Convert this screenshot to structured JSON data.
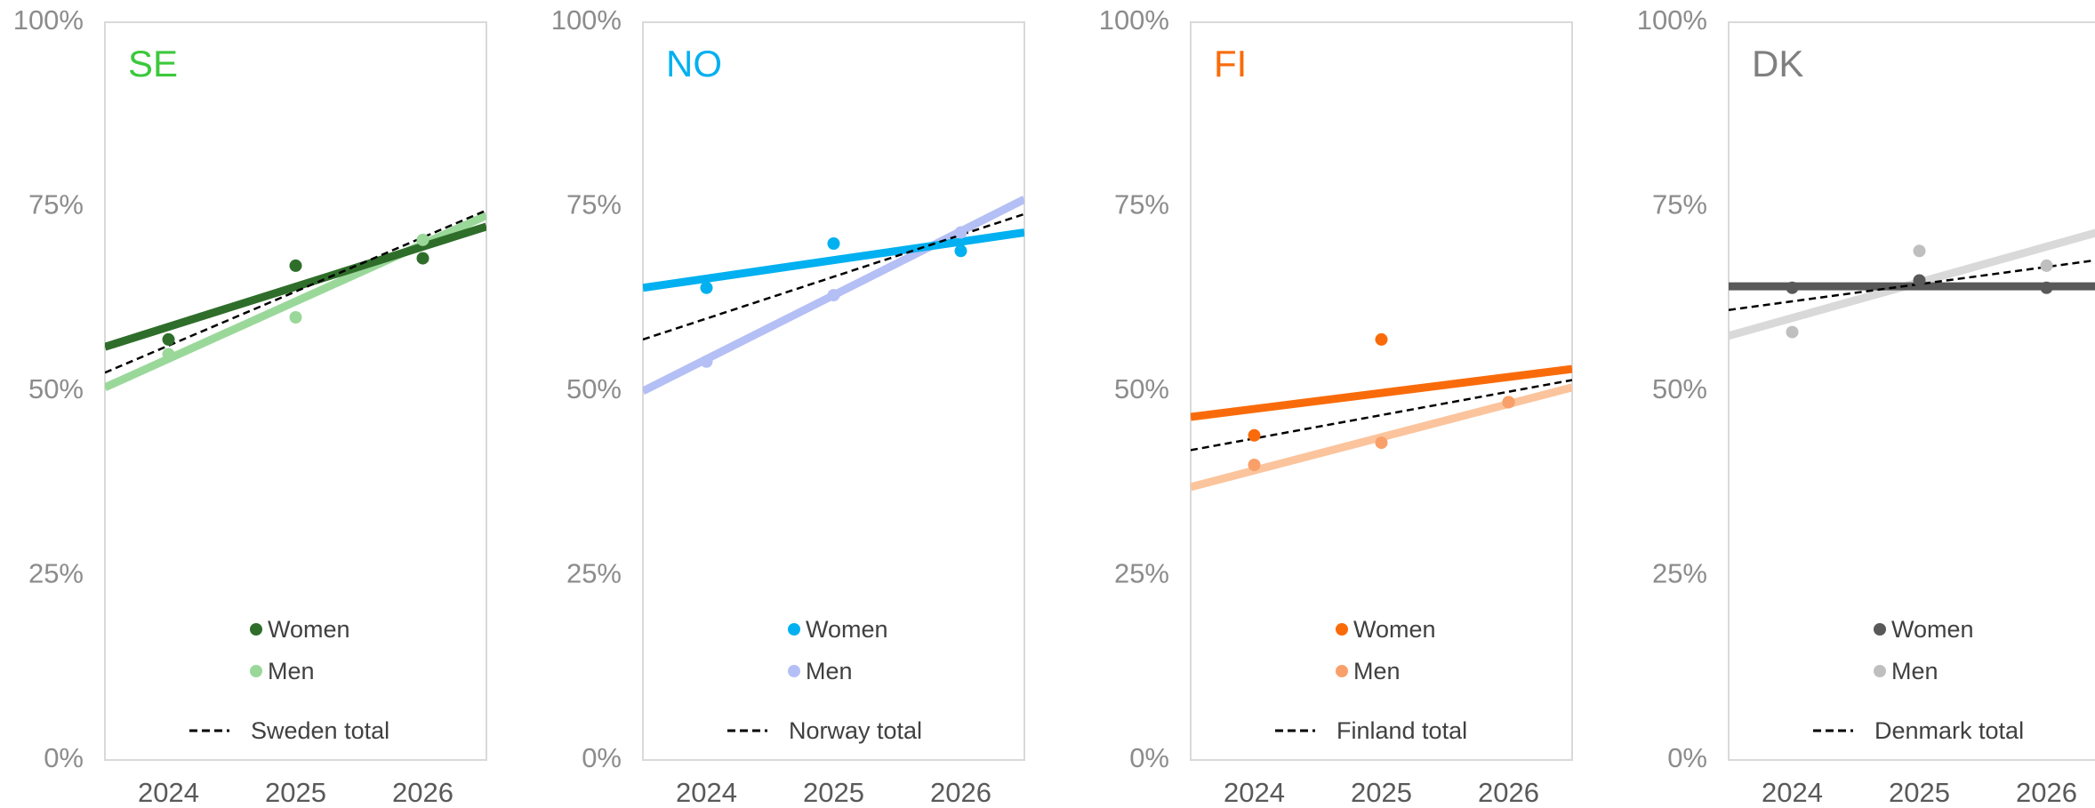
{
  "chart_data": [
    {
      "type": "scatter",
      "title": "SE",
      "title_color": "#3cc83c",
      "x": [
        2024,
        2025,
        2026
      ],
      "xlim": [
        2023.5,
        2026.5
      ],
      "xticks": [
        2024,
        2025,
        2026
      ],
      "ylim": [
        0,
        100
      ],
      "yticks": [
        {
          "value": 0,
          "label": "0%"
        },
        {
          "value": 25,
          "label": "25%"
        },
        {
          "value": 50,
          "label": "50%"
        },
        {
          "value": 75,
          "label": "75%"
        },
        {
          "value": 100,
          "label": "100%"
        }
      ],
      "series": [
        {
          "name": "Women",
          "color": "#2e6e2a",
          "line_color": "#2e6e2a",
          "values": [
            57,
            67,
            68
          ],
          "trend": [
            56,
            72.3
          ]
        },
        {
          "name": "Men",
          "color": "#9ad89a",
          "line_color": "#9ad89a",
          "values": [
            55,
            60,
            70.5
          ],
          "trend": [
            50.5,
            73.8
          ]
        }
      ],
      "total": {
        "name": "Sweden total",
        "color": "#000000",
        "trend": [
          52.5,
          74.5
        ]
      }
    },
    {
      "type": "scatter",
      "title": "NO",
      "title_color": "#00b0f0",
      "x": [
        2024,
        2025,
        2026
      ],
      "xlim": [
        2023.5,
        2026.5
      ],
      "xticks": [
        2024,
        2025,
        2026
      ],
      "ylim": [
        0,
        100
      ],
      "yticks": [
        {
          "value": 0,
          "label": "0%"
        },
        {
          "value": 25,
          "label": "25%"
        },
        {
          "value": 50,
          "label": "50%"
        },
        {
          "value": 75,
          "label": "75%"
        },
        {
          "value": 100,
          "label": "100%"
        }
      ],
      "series": [
        {
          "name": "Women",
          "color": "#00b0f0",
          "line_color": "#00b0f0",
          "values": [
            64,
            70,
            69
          ],
          "trend": [
            64,
            71.5
          ]
        },
        {
          "name": "Men",
          "color": "#b4bff5",
          "line_color": "#b4bff5",
          "values": [
            54,
            63,
            71.5
          ],
          "trend": [
            50,
            76
          ]
        }
      ],
      "total": {
        "name": "Norway total",
        "color": "#000000",
        "trend": [
          57,
          74
        ]
      }
    },
    {
      "type": "scatter",
      "title": "FI",
      "title_color": "#f96b0a",
      "x": [
        2024,
        2025,
        2026
      ],
      "xlim": [
        2023.5,
        2026.5
      ],
      "xticks": [
        2024,
        2025,
        2026
      ],
      "ylim": [
        0,
        100
      ],
      "yticks": [
        {
          "value": 0,
          "label": "0%"
        },
        {
          "value": 25,
          "label": "25%"
        },
        {
          "value": 50,
          "label": "50%"
        },
        {
          "value": 75,
          "label": "75%"
        },
        {
          "value": 100,
          "label": "100%"
        }
      ],
      "series": [
        {
          "name": "Women",
          "color": "#f96b0a",
          "line_color": "#f96b0a",
          "values": [
            44,
            57,
            48.5
          ],
          "trend": [
            46.5,
            53
          ]
        },
        {
          "name": "Men",
          "color": "#f9a06a",
          "line_color": "#fbc49c",
          "values": [
            40,
            43,
            48.5
          ],
          "trend": [
            37,
            50.5
          ]
        }
      ],
      "total": {
        "name": "Finland total",
        "color": "#000000",
        "trend": [
          42,
          51.5
        ]
      }
    },
    {
      "type": "scatter",
      "title": "DK",
      "title_color": "#7f7f7f",
      "x": [
        2024,
        2025,
        2026
      ],
      "xlim": [
        2023.5,
        2026.5
      ],
      "xticks": [
        2024,
        2025,
        2026
      ],
      "ylim": [
        0,
        100
      ],
      "yticks": [
        {
          "value": 0,
          "label": "0%"
        },
        {
          "value": 25,
          "label": "25%"
        },
        {
          "value": 50,
          "label": "50%"
        },
        {
          "value": 75,
          "label": "75%"
        },
        {
          "value": 100,
          "label": "100%"
        }
      ],
      "series": [
        {
          "name": "Women",
          "color": "#595959",
          "line_color": "#595959",
          "values": [
            64,
            65,
            64
          ],
          "trend": [
            64.2,
            64.2
          ]
        },
        {
          "name": "Men",
          "color": "#bfbfbf",
          "line_color": "#d9d9d9",
          "values": [
            58,
            69,
            67
          ],
          "trend": [
            57.5,
            72
          ]
        }
      ],
      "total": {
        "name": "Denmark total",
        "color": "#000000",
        "trend": [
          61,
          68
        ]
      }
    }
  ]
}
